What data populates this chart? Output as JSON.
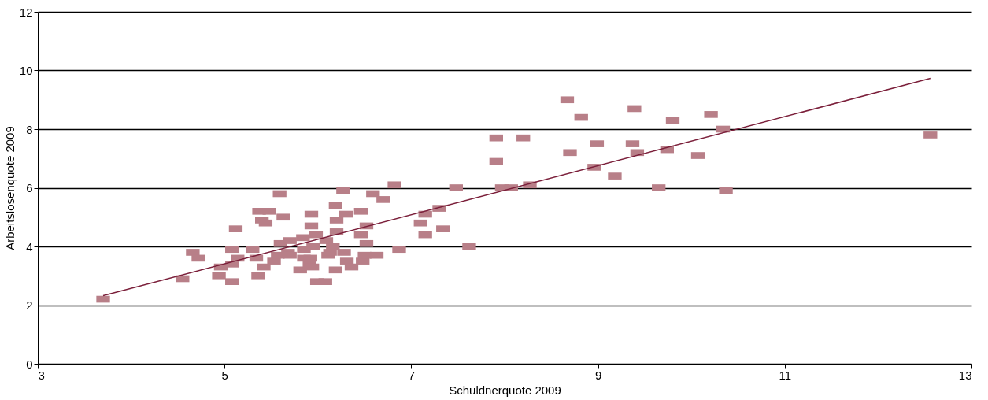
{
  "chart_data": {
    "type": "scatter",
    "xlabel": "Schuldnerquote 2009",
    "ylabel": "Arbeitslosenquote 2009",
    "xlim": [
      3,
      13
    ],
    "xticks": [
      3,
      5,
      7,
      9,
      11,
      13
    ],
    "ylim": [
      0,
      12
    ],
    "yticks": [
      0,
      2,
      4,
      6,
      8,
      10,
      12
    ],
    "grid": "y",
    "series": [
      {
        "color": "#b87f88",
        "marker": "square",
        "x": [
          3.7,
          4.55,
          4.66,
          4.72,
          4.94,
          4.96,
          5.08,
          5.08,
          5.12,
          5.08,
          5.14,
          5.3,
          5.36,
          5.34,
          5.37,
          5.4,
          5.44,
          5.42,
          5.48,
          5.53,
          5.57,
          5.59,
          5.6,
          5.63,
          5.68,
          5.7,
          5.7,
          5.81,
          5.84,
          5.85,
          5.85,
          5.91,
          5.92,
          5.93,
          5.93,
          5.94,
          5.95,
          5.98,
          5.99,
          6.08,
          6.09,
          6.11,
          6.13,
          6.16,
          6.19,
          6.19,
          6.2,
          6.2,
          6.27,
          6.28,
          6.3,
          6.31,
          6.36,
          6.46,
          6.46,
          6.48,
          6.5,
          6.52,
          6.52,
          6.59,
          6.63,
          6.7,
          6.82,
          6.87,
          7.1,
          7.15,
          7.15,
          7.3,
          7.34,
          7.48,
          7.62,
          7.91,
          7.91,
          7.97,
          8.07,
          8.2,
          8.27,
          8.67,
          8.7,
          8.82,
          8.96,
          8.99,
          9.18,
          9.37,
          9.39,
          9.42,
          9.65,
          9.74,
          9.8,
          10.07,
          10.21,
          10.34,
          10.37,
          12.56
        ],
        "values": [
          2.2,
          2.9,
          3.8,
          3.6,
          3.0,
          3.3,
          2.8,
          3.9,
          4.6,
          3.4,
          3.6,
          3.9,
          3.0,
          3.6,
          5.2,
          4.9,
          4.8,
          3.3,
          5.2,
          3.5,
          3.7,
          5.8,
          4.1,
          5.0,
          3.8,
          4.2,
          3.7,
          3.2,
          4.3,
          3.9,
          3.6,
          3.4,
          3.6,
          5.1,
          4.7,
          3.3,
          4.0,
          4.4,
          2.8,
          2.8,
          4.2,
          3.7,
          3.8,
          4.0,
          5.4,
          3.2,
          4.5,
          4.9,
          5.9,
          3.8,
          5.1,
          3.5,
          3.3,
          5.2,
          4.4,
          3.5,
          3.7,
          4.7,
          4.1,
          5.8,
          3.7,
          5.6,
          6.1,
          3.9,
          4.8,
          5.1,
          4.4,
          5.3,
          4.6,
          6.0,
          4.0,
          7.7,
          6.9,
          6.0,
          6.0,
          7.7,
          6.1,
          9.0,
          7.2,
          8.4,
          6.7,
          7.5,
          6.4,
          7.5,
          8.7,
          7.2,
          6.0,
          7.3,
          8.3,
          7.1,
          8.5,
          8.0,
          5.9,
          7.8
        ]
      },
      {
        "type": "line",
        "marker": "none",
        "color": "#7b1f3a",
        "x": [
          3.7,
          12.56
        ],
        "values": [
          2.32,
          9.73
        ]
      }
    ]
  }
}
